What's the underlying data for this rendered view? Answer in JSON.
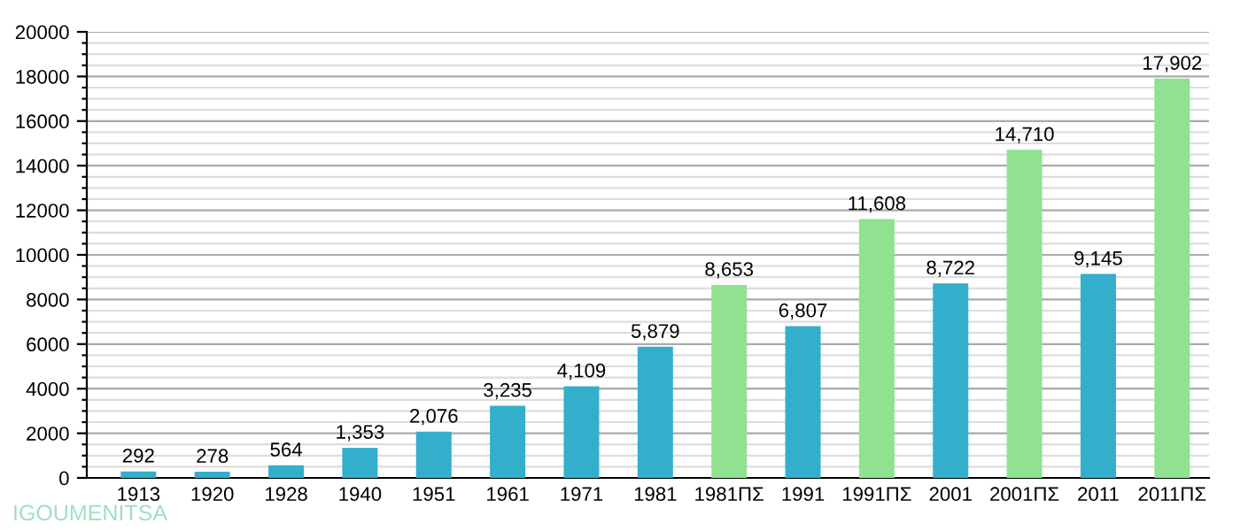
{
  "chart_data": {
    "type": "bar",
    "categories": [
      "1913",
      "1920",
      "1928",
      "1940",
      "1951",
      "1961",
      "1971",
      "1981",
      "1981ΠΣ",
      "1991",
      "1991ΠΣ",
      "2001",
      "2001ΠΣ",
      "2011",
      "2011ΠΣ"
    ],
    "values": [
      292,
      278,
      564,
      1353,
      2076,
      3235,
      4109,
      5879,
      8653,
      6807,
      11608,
      8722,
      14710,
      9145,
      17902
    ],
    "value_labels": [
      "292",
      "278",
      "564",
      "1,353",
      "2,076",
      "3,235",
      "4,109",
      "5,879",
      "8,653",
      "6,807",
      "11,608",
      "8,722",
      "14,710",
      "9,145",
      "17,902"
    ],
    "colors": [
      "#33afcc",
      "#33afcc",
      "#33afcc",
      "#33afcc",
      "#33afcc",
      "#33afcc",
      "#33afcc",
      "#33afcc",
      "#90e290",
      "#33afcc",
      "#90e290",
      "#33afcc",
      "#90e290",
      "#33afcc",
      "#90e290"
    ],
    "ylim": [
      0,
      20000
    ],
    "yticks": [
      0,
      {
        "value": 500,
        "label": null
      },
      {
        "value": 1000,
        "label": null
      },
      {
        "value": 1500,
        "label": null
      },
      2000,
      {
        "value": 2500,
        "label": null
      },
      {
        "value": 3000,
        "label": null
      },
      {
        "value": 3500,
        "label": null
      },
      4000,
      {
        "value": 4500,
        "label": null
      },
      {
        "value": 5000,
        "label": null
      },
      {
        "value": 5500,
        "label": null
      },
      6000,
      {
        "value": 6500,
        "label": null
      },
      {
        "value": 7000,
        "label": null
      },
      {
        "value": 7500,
        "label": null
      },
      8000,
      {
        "value": 8500,
        "label": null
      },
      {
        "value": 9000,
        "label": null
      },
      {
        "value": 9500,
        "label": null
      },
      10000,
      {
        "value": 10500,
        "label": null
      },
      {
        "value": 11000,
        "label": null
      },
      {
        "value": 11500,
        "label": null
      },
      12000,
      {
        "value": 12500,
        "label": null
      },
      {
        "value": 13000,
        "label": null
      },
      {
        "value": 13500,
        "label": null
      },
      14000,
      {
        "value": 14500,
        "label": null
      },
      {
        "value": 15000,
        "label": null
      },
      {
        "value": 15500,
        "label": null
      },
      16000,
      {
        "value": 16500,
        "label": null
      },
      {
        "value": 17000,
        "label": null
      },
      {
        "value": 17500,
        "label": null
      },
      18000,
      {
        "value": 18500,
        "label": null
      },
      {
        "value": 19000,
        "label": null
      },
      {
        "value": 19500,
        "label": null
      },
      20000
    ],
    "grid": "y",
    "annotations": [
      "IGOUMENITSA"
    ]
  }
}
